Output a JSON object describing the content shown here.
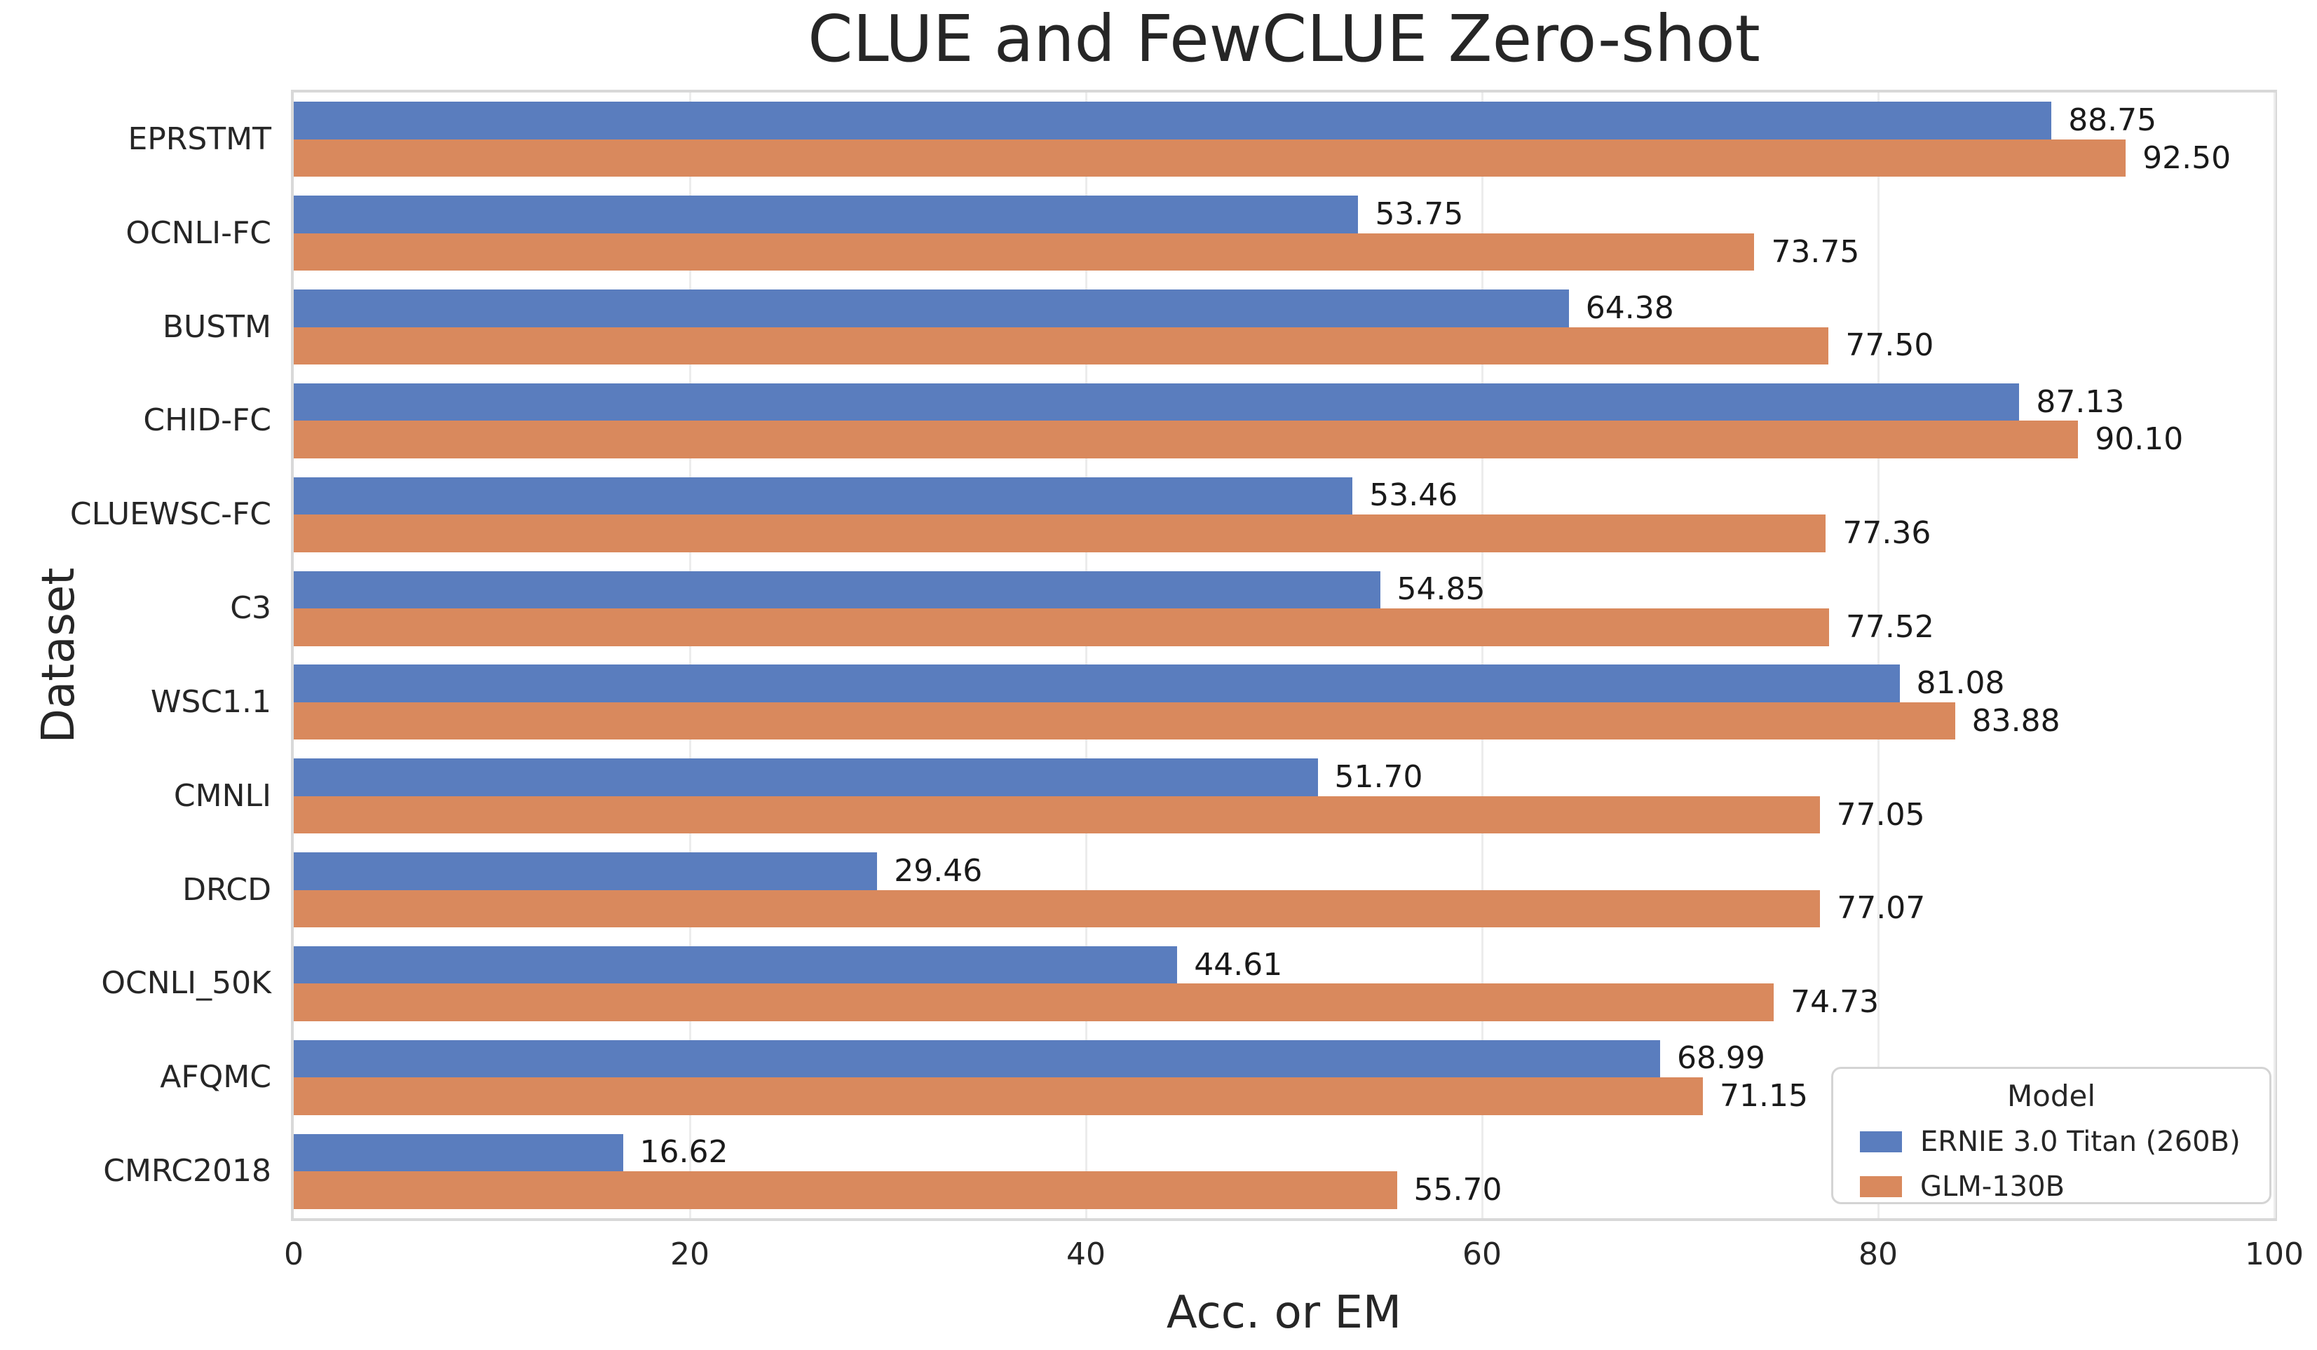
{
  "figure": {
    "title": "CLUE and FewCLUE Zero-shot",
    "xlabel": "Acc. or EM",
    "ylabel": "Dataset"
  },
  "legend": {
    "title": "Model",
    "items": [
      {
        "label": "ERNIE 3.0 Titan (260B)",
        "color": "#5a7dbe"
      },
      {
        "label": "GLM-130B",
        "color": "#d9895d"
      }
    ]
  },
  "chart_data": {
    "type": "bar",
    "orientation": "horizontal",
    "title": "CLUE and FewCLUE Zero-shot",
    "xlabel": "Acc. or EM",
    "ylabel": "Dataset",
    "xlim": [
      0,
      100
    ],
    "xticks": [
      0,
      20,
      40,
      60,
      80,
      100
    ],
    "grid": "vertical-only",
    "legend_position": "lower right",
    "categories": [
      "EPRSTMT",
      "OCNLI-FC",
      "BUSTM",
      "CHID-FC",
      "CLUEWSC-FC",
      "C3",
      "WSC1.1",
      "CMNLI",
      "DRCD",
      "OCNLI_50K",
      "AFQMC",
      "CMRC2018"
    ],
    "series": [
      {
        "name": "ERNIE 3.0 Titan (260B)",
        "color": "#5a7dbe",
        "values": [
          88.75,
          53.75,
          64.38,
          87.13,
          53.46,
          54.85,
          81.08,
          51.7,
          29.46,
          44.61,
          68.99,
          16.62
        ]
      },
      {
        "name": "GLM-130B",
        "color": "#d9895d",
        "values": [
          92.5,
          73.75,
          77.5,
          90.1,
          77.36,
          77.52,
          83.88,
          77.05,
          77.07,
          74.73,
          71.15,
          55.7
        ]
      }
    ]
  }
}
